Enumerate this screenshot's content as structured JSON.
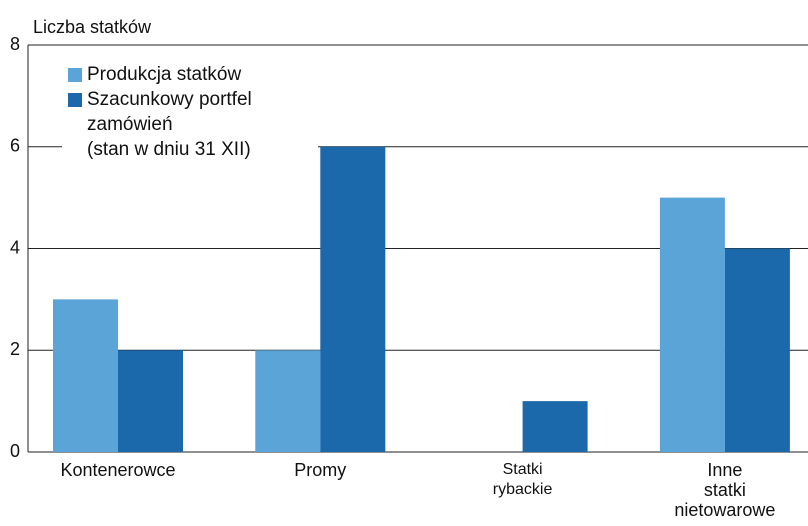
{
  "chart_data": {
    "type": "bar",
    "y_label": "Liczba statków",
    "categories": [
      "Kontenerowce",
      "Promy",
      "Statki\nrybackie",
      "Inne\nstatki\nnietowarowe"
    ],
    "series": [
      {
        "name": "Produkcja statków",
        "color": "#5ba4d7",
        "values": [
          3,
          2,
          0,
          5
        ]
      },
      {
        "name": "Szacunkowy portfel zamówień\n(stan w dniu 31 XII)",
        "color": "#1b68aa",
        "values": [
          2,
          6,
          1,
          4
        ]
      }
    ],
    "ylim": [
      0,
      8
    ],
    "yticks": [
      0,
      2,
      4,
      6,
      8
    ],
    "grid": true,
    "legend": "upper left"
  }
}
